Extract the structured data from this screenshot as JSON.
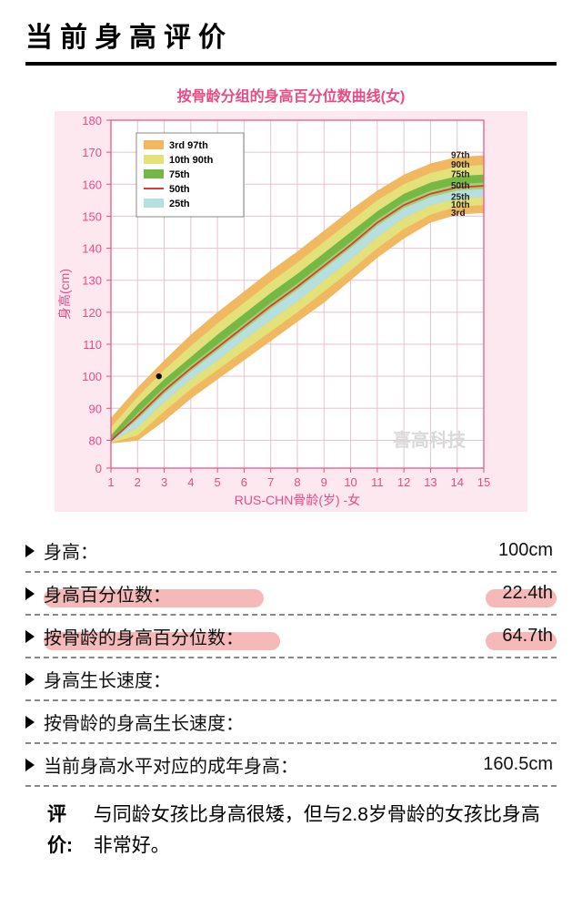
{
  "page_title": "当前身高评价",
  "chart": {
    "type": "percentile-band-line",
    "title": "按骨龄分组的身高百分位数曲线(女)",
    "title_color": "#e94b86",
    "xlabel": "RUS-CHN骨龄(岁) -女",
    "ylabel": "身高(cm)",
    "label_color": "#e94b86",
    "label_fontsize": 14,
    "background_color": "#fde8f0",
    "plot_bg": "#ffffff",
    "grid_color": "#e8c2d0",
    "axis_color": "#e94b86",
    "tick_color": "#e94b86",
    "xlim": [
      1,
      15
    ],
    "xticks": [
      1,
      2,
      3,
      4,
      5,
      6,
      7,
      8,
      9,
      10,
      11,
      12,
      13,
      14,
      15
    ],
    "ylim": [
      0,
      180
    ],
    "yticks": [
      0,
      80,
      90,
      100,
      110,
      120,
      130,
      140,
      150,
      160,
      170,
      180
    ],
    "bands": [
      {
        "name": "3rd-97th",
        "color": "#f0b961",
        "lo": "p3",
        "hi": "p97"
      },
      {
        "name": "10th-90th",
        "color": "#e4e07a",
        "lo": "p10",
        "hi": "p90"
      },
      {
        "name": "25th-75th",
        "color": "#a7cf72",
        "lo": "p25",
        "hi": "p75"
      },
      {
        "name": "75th",
        "color": "#76b845",
        "lo": "p50u",
        "hi": "p75"
      },
      {
        "name": "25th",
        "color": "#b6dfe0",
        "lo": "p25",
        "hi": "p50l"
      }
    ],
    "median_line_color": "#d93a3a",
    "median_line_width": 1.8,
    "x": [
      1,
      2,
      3,
      4,
      5,
      6,
      7,
      8,
      9,
      10,
      11,
      12,
      13,
      14,
      15
    ],
    "p3": [
      71,
      79,
      86,
      93,
      99,
      105,
      111,
      117,
      123,
      130,
      137,
      143,
      148,
      150.5,
      151
    ],
    "p10": [
      73,
      81.5,
      89,
      96,
      102,
      108,
      114,
      120,
      126.5,
      133,
      140,
      146,
      150.5,
      153,
      153.5
    ],
    "p25": [
      75.5,
      84,
      92,
      99,
      105,
      111.5,
      117.5,
      123.5,
      130,
      136.5,
      143.5,
      149.5,
      153.5,
      155.5,
      156
    ],
    "p50l": [
      77.5,
      86.5,
      94.5,
      101.5,
      108,
      114.5,
      121,
      127,
      133.5,
      140,
      147,
      152.5,
      156,
      158,
      158.5
    ],
    "p50": [
      78.5,
      87.5,
      95.5,
      102.5,
      109,
      115.5,
      122,
      128,
      134.5,
      141,
      148,
      153.5,
      157,
      159,
      159.5
    ],
    "p50u": [
      79.5,
      88.5,
      96.5,
      103.5,
      110,
      116.5,
      123,
      129,
      135.5,
      142,
      149,
      154.5,
      158,
      160,
      160.5
    ],
    "p75": [
      81.5,
      91,
      99,
      106,
      113,
      119.5,
      126,
      132,
      138.5,
      145,
      151.5,
      157,
      160.5,
      162.5,
      163
    ],
    "p90": [
      84,
      93.5,
      102,
      109.5,
      116.5,
      123,
      129.5,
      135.5,
      142,
      148.5,
      155,
      160,
      163.5,
      165.5,
      166
    ],
    "p97": [
      87,
      96.5,
      105,
      113,
      120,
      126.5,
      133,
      139,
      145.5,
      152,
      158,
      163,
      166.5,
      168.5,
      169
    ],
    "data_point": {
      "x": 2.8,
      "y": 100,
      "color": "#000000",
      "radius": 3.2
    },
    "end_labels": [
      "97th",
      "90th",
      "75th",
      "50th",
      "25th",
      "10th",
      "3rd"
    ],
    "end_label_fontsize": 10,
    "end_label_weight": 700,
    "watermark": "喜高科技",
    "watermark_color": "#d9d9d9",
    "legend": {
      "bg": "#ffffff",
      "border": "#888888",
      "items": [
        {
          "swatch": "#f0b961",
          "label": "3rd  97th"
        },
        {
          "swatch": "#e4e07a",
          "label": "10th 90th"
        },
        {
          "swatch": "#76b845",
          "label": "75th"
        },
        {
          "swatch_line": "#d93a3a",
          "label": "50th"
        },
        {
          "swatch": "#b6dfe0",
          "label": "25th"
        }
      ],
      "fontsize": 11
    }
  },
  "rows": [
    {
      "label": "身高：",
      "value": "100cm",
      "highlight": false
    },
    {
      "label": "身高百分位数：",
      "value": "22.4th",
      "highlight": true,
      "hl_left_w": 242,
      "hl_right_w": 78,
      "hl_color": "#f5b9b9"
    },
    {
      "label": "按骨龄的身高百分位数：",
      "value": "64.7th",
      "highlight": true,
      "hl_left_w": 260,
      "hl_right_w": 78,
      "hl_color": "#f5b9b9"
    },
    {
      "label": "身高生长速度：",
      "value": "",
      "highlight": false
    },
    {
      "label": "按骨龄的身高生长速度：",
      "value": "",
      "highlight": false
    },
    {
      "label": "当前身高水平对应的成年身高：",
      "value": "160.5cm",
      "highlight": false
    }
  ],
  "evaluation": {
    "label": "评价:",
    "text": "与同龄女孩比身高很矮，但与2.8岁骨龄的女孩比身高非常好。"
  }
}
